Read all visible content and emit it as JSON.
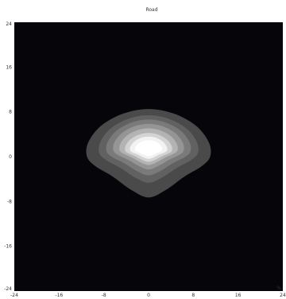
{
  "chart_data": {
    "type": "heatmap",
    "title": "Road",
    "unit_label": "%",
    "x_ticks": [
      "-24",
      "-16",
      "-8",
      "0",
      "8",
      "16",
      "24"
    ],
    "y_ticks": [
      "24",
      "16",
      "8",
      "0",
      "-8",
      "-16",
      "-24"
    ],
    "xlim": [
      -24,
      24
    ],
    "ylim": [
      -24,
      24
    ],
    "grid": false,
    "background_color": "#05050a",
    "contour_levels": [
      {
        "level": 1,
        "color": "#4a4a4a",
        "radius_scale": 1.0,
        "center": [
          0.0,
          0.5
        ]
      },
      {
        "level": 2,
        "color": "#616161",
        "radius_scale": 0.8,
        "center": [
          0.0,
          1.0
        ]
      },
      {
        "level": 3,
        "color": "#7a7a7a",
        "radius_scale": 0.68,
        "center": [
          0.0,
          1.2
        ]
      },
      {
        "level": 4,
        "color": "#959595",
        "radius_scale": 0.57,
        "center": [
          0.0,
          1.3
        ]
      },
      {
        "level": 5,
        "color": "#b3b3b3",
        "radius_scale": 0.47,
        "center": [
          0.0,
          1.3
        ]
      },
      {
        "level": 6,
        "color": "#d3d3d3",
        "radius_scale": 0.38,
        "center": [
          0.0,
          1.2
        ]
      },
      {
        "level": 7,
        "color": "#f2f2f2",
        "radius_scale": 0.3,
        "center": [
          0.0,
          1.2
        ]
      },
      {
        "level": 8,
        "color": "#ffffff",
        "radius_scale": 0.22,
        "center": [
          0.0,
          1.2
        ]
      }
    ]
  }
}
